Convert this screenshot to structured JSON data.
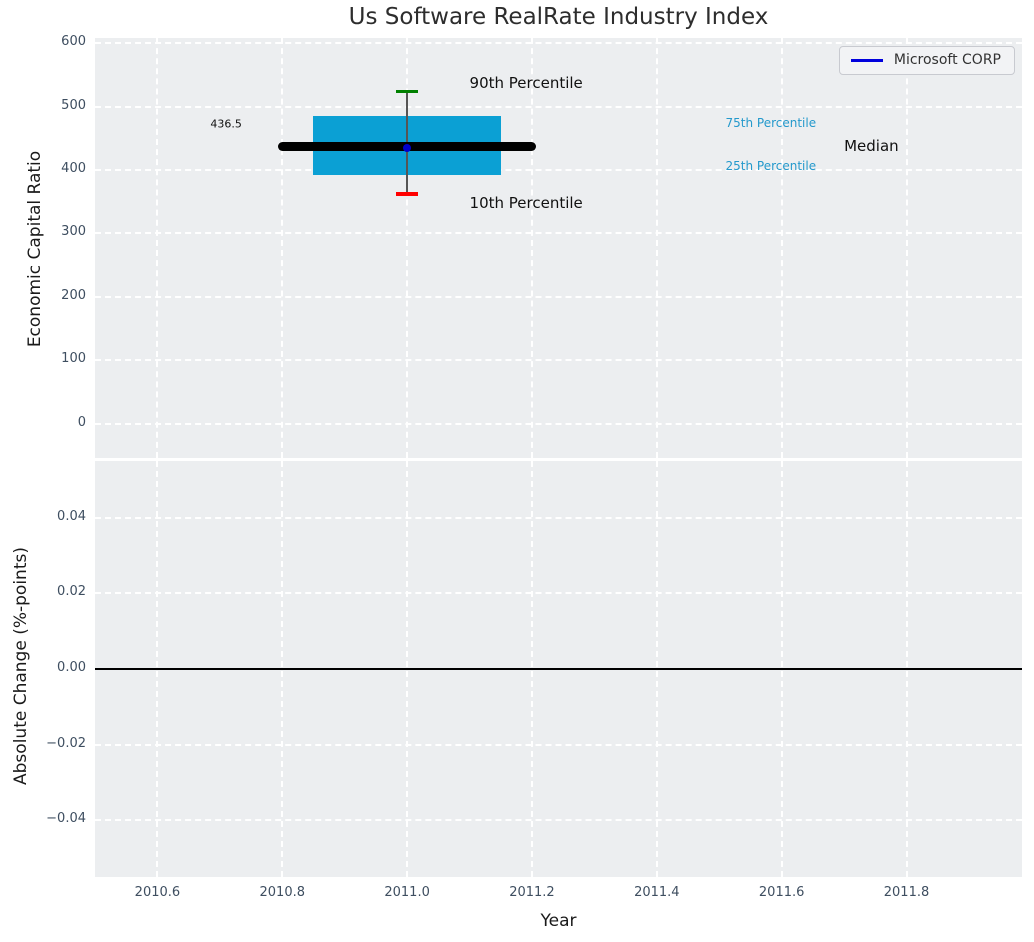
{
  "figure": {
    "title": "Us Software RealRate Industry Index"
  },
  "legend": {
    "label": "Microsoft CORP"
  },
  "colors": {
    "plot_bg": "#eceef0",
    "grid": "#ffffff",
    "tick_text": "#3e4e60",
    "box_fill": "#0ba0d4",
    "median_line": "#000000",
    "whisker": "#555555",
    "cap_90th": "#008000",
    "cap_10th": "#ff0000",
    "company_marker": "#0000cc",
    "legend_line": "#0000dd",
    "percentile_text": "#2499cc",
    "zero_line": "#000000"
  },
  "chart_data": [
    {
      "type": "boxplot",
      "title": "Us Software RealRate Industry Index",
      "ylabel": "Economic Capital Ratio",
      "xlim": [
        2010.5,
        2011.985
      ],
      "ylim": [
        -54,
        608
      ],
      "grid": "white dashed on light gray",
      "legend_position": "upper right",
      "legend_entries": [
        {
          "label": "Microsoft CORP",
          "color": "#0000dd"
        }
      ],
      "xticks": {
        "values": [
          2010.6,
          2010.8,
          2011.0,
          2011.2,
          2011.4,
          2011.6,
          2011.8
        ],
        "labels": []
      },
      "yticks": {
        "values": [
          600,
          500,
          400,
          300,
          200,
          100,
          0
        ],
        "labels": [
          "600",
          "500",
          "400",
          "300",
          "200",
          "100",
          "0"
        ]
      },
      "box": {
        "x_center": 2011.0,
        "box_x_range": [
          2010.85,
          2011.15
        ],
        "median_x_range": [
          2010.8,
          2011.2
        ],
        "cap_half_width": 0.018,
        "p10": 362,
        "p25": 392,
        "median": 436.5,
        "p75": 485,
        "p90": 524,
        "company_point": {
          "name": "Microsoft CORP",
          "x": 2011.0,
          "y": 434
        }
      },
      "annotations": [
        {
          "name": "annotation-median-value",
          "text": "436.5",
          "x": 2010.71,
          "y": 473,
          "align": "center",
          "size": 11,
          "color": "#111111"
        },
        {
          "name": "annotation-90th-percentile",
          "text": "90th Percentile",
          "x": 2011.1,
          "y": 537,
          "align": "left",
          "size": 15,
          "color": "#111111"
        },
        {
          "name": "annotation-10th-percentile",
          "text": "10th Percentile",
          "x": 2011.1,
          "y": 348,
          "align": "left",
          "size": 15,
          "color": "#111111"
        },
        {
          "name": "annotation-75th-percentile",
          "text": "75th Percentile",
          "x": 2011.51,
          "y": 474,
          "align": "left",
          "size": 12,
          "color": "#2499cc"
        },
        {
          "name": "annotation-median",
          "text": "Median",
          "x": 2011.7,
          "y": 437,
          "align": "left",
          "size": 15,
          "color": "#111111"
        },
        {
          "name": "annotation-25th-percentile",
          "text": "25th Percentile",
          "x": 2011.51,
          "y": 406,
          "align": "left",
          "size": 12,
          "color": "#2499cc"
        }
      ]
    },
    {
      "type": "line",
      "ylabel": "Absolute Change (%-points)",
      "xlabel": "Year",
      "xlim": [
        2010.5,
        2011.985
      ],
      "ylim": [
        -0.055,
        0.055
      ],
      "grid": "white dashed on light gray",
      "xticks": {
        "values": [
          2010.6,
          2010.8,
          2011.0,
          2011.2,
          2011.4,
          2011.6,
          2011.8
        ],
        "labels": [
          "2010.6",
          "2010.8",
          "2011.0",
          "2011.2",
          "2011.4",
          "2011.6",
          "2011.8"
        ]
      },
      "yticks": {
        "values": [
          0.04,
          0.02,
          0.0,
          -0.02,
          -0.04
        ],
        "labels": [
          "0.04",
          "0.02",
          "0.00",
          "−0.02",
          "−0.04"
        ]
      },
      "zero_line": 0.0,
      "series": []
    }
  ]
}
